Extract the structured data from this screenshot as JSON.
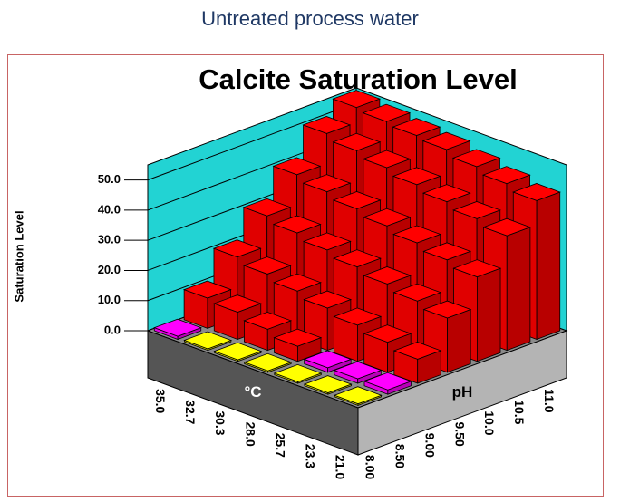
{
  "header": {
    "title": "Untreated process water"
  },
  "chart_data": {
    "type": "bar3d",
    "title": "Calcite Saturation Level",
    "y_label": "Saturation Level",
    "x_label": "°C",
    "z_label": "pH",
    "categories": [
      "35.0",
      "32.7",
      "30.3",
      "28.0",
      "25.7",
      "23.3",
      "21.0"
    ],
    "series": [
      {
        "name": "8.00",
        "values": [
          1.0,
          0.5,
          0.5,
          0.5,
          0.5,
          0.5,
          0.5
        ],
        "colors": [
          "#ff00ff",
          "#ffff00",
          "#ffff00",
          "#ffff00",
          "#ffff00",
          "#ffff00",
          "#ffff00"
        ]
      },
      {
        "name": "8.50",
        "values": [
          10,
          9,
          7,
          5,
          1.5,
          1.5,
          1.5
        ],
        "colors": [
          "#ff0000",
          "#ff0000",
          "#ff0000",
          "#ff0000",
          "#ff00ff",
          "#ff00ff",
          "#ff00ff"
        ]
      },
      {
        "name": "9.00",
        "values": [
          20,
          18,
          16,
          14,
          12,
          10,
          8
        ],
        "colors": [
          "#ff0000",
          "#ff0000",
          "#ff0000",
          "#ff0000",
          "#ff0000",
          "#ff0000",
          "#ff0000"
        ]
      },
      {
        "name": "9.50",
        "values": [
          30,
          28,
          26,
          24,
          22,
          20,
          18
        ],
        "colors": [
          "#ff0000",
          "#ff0000",
          "#ff0000",
          "#ff0000",
          "#ff0000",
          "#ff0000",
          "#ff0000"
        ]
      },
      {
        "name": "10.0",
        "values": [
          40,
          38,
          36,
          34,
          32,
          30,
          28
        ],
        "colors": [
          "#ff0000",
          "#ff0000",
          "#ff0000",
          "#ff0000",
          "#ff0000",
          "#ff0000",
          "#ff0000"
        ]
      },
      {
        "name": "10.5",
        "values": [
          50,
          48,
          46,
          44,
          42,
          40,
          38
        ],
        "colors": [
          "#ff0000",
          "#ff0000",
          "#ff0000",
          "#ff0000",
          "#ff0000",
          "#ff0000",
          "#ff0000"
        ]
      },
      {
        "name": "11.0",
        "values": [
          55,
          54,
          53,
          52,
          50,
          48,
          46
        ],
        "colors": [
          "#ff0000",
          "#ff0000",
          "#ff0000",
          "#ff0000",
          "#ff0000",
          "#ff0000",
          "#ff0000"
        ]
      }
    ],
    "ylim": [
      0,
      55
    ],
    "yticks": [
      {
        "value": 0,
        "label": "0.0"
      },
      {
        "value": 10,
        "label": "10.0"
      },
      {
        "value": 20,
        "label": "20.0"
      },
      {
        "value": 30,
        "label": "30.0"
      },
      {
        "value": 40,
        "label": "40.0"
      },
      {
        "value": 50,
        "label": "50.0"
      }
    ],
    "wall_color": "#22d3d3"
  }
}
